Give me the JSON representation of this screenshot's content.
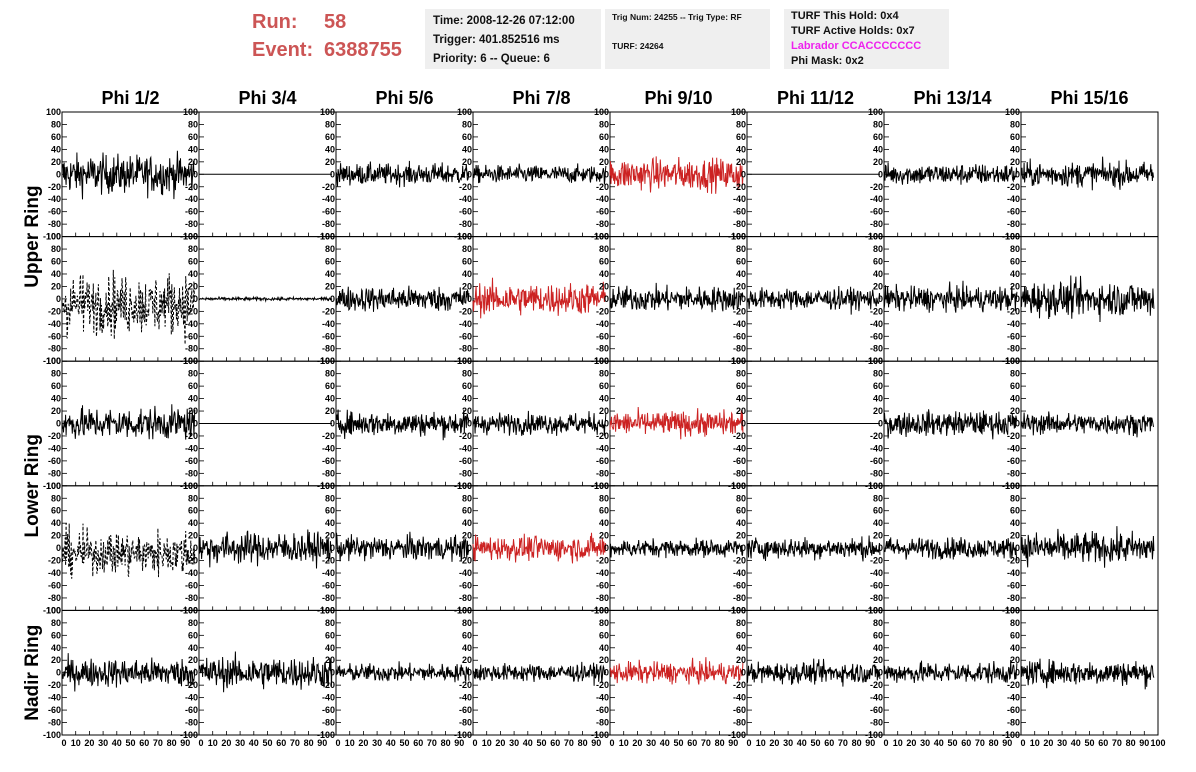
{
  "header": {
    "run_label": "Run:",
    "run_value": "58",
    "event_label": "Event:",
    "event_value": "6388755",
    "time": "Time: 2008-12-26 07:12:00",
    "trigger": "Trigger: 401.852516 ms",
    "priority": "Priority: 6 -- Queue: 6",
    "trig_num": "Trig Num: 24255 -- Trig Type: RF",
    "turf": "TURF: 24264",
    "turf_this_hold": "TURF This Hold: 0x4",
    "turf_active_holds": "TURF Active Holds: 0x7",
    "labrador": "Labrador CCACCCCCCC",
    "phi_mask": "Phi Mask: 0x2"
  },
  "colors": {
    "normal": "#000000",
    "triggered": "#cc2222",
    "labrador": "#ee22ee",
    "run_event": "#cc5555"
  },
  "chart_data": {
    "type": "line",
    "title": "",
    "columns": [
      "Phi 1/2",
      "Phi 3/4",
      "Phi 5/6",
      "Phi 7/8",
      "Phi 9/10",
      "Phi 11/12",
      "Phi 13/14",
      "Phi 15/16"
    ],
    "row_groups": [
      "Upper Ring",
      "Lower Ring",
      "Nadir Ring"
    ],
    "rows": 5,
    "ylim": [
      -100,
      100
    ],
    "xlim": [
      0,
      100
    ],
    "y_ticks": [
      -100,
      -80,
      -60,
      -40,
      -20,
      0,
      20,
      40,
      60,
      80,
      100
    ],
    "x_ticks": [
      0,
      10,
      20,
      30,
      40,
      50,
      60,
      70,
      80,
      90
    ],
    "x_tick_labels": [
      "0",
      "10",
      "20",
      "30",
      "40",
      "50",
      "60",
      "70",
      "80",
      "90"
    ],
    "last_x_tick_labels": [
      "0",
      "10",
      "20",
      "30",
      "40",
      "50",
      "60",
      "70",
      "80",
      "90",
      "100"
    ],
    "samples_per_trace": 260,
    "trace_x_range": [
      0,
      97
    ],
    "panels": [
      [
        {
          "style": "solid",
          "color": "black",
          "amp": 22
        },
        {
          "style": "flat",
          "color": "black",
          "amp": 0
        },
        {
          "style": "solid",
          "color": "black",
          "amp": 12
        },
        {
          "style": "solid",
          "color": "black",
          "amp": 10
        },
        {
          "style": "solid",
          "color": "red",
          "amp": 18
        },
        {
          "style": "flat",
          "color": "black",
          "amp": 0
        },
        {
          "style": "solid",
          "color": "black",
          "amp": 12
        },
        {
          "style": "solid",
          "color": "black",
          "amp": 14
        }
      ],
      [
        {
          "style": "dashed",
          "color": "black",
          "amp": 38
        },
        {
          "style": "quiet",
          "color": "black",
          "amp": 3
        },
        {
          "style": "solid",
          "color": "black",
          "amp": 14
        },
        {
          "style": "solid",
          "color": "red",
          "amp": 18
        },
        {
          "style": "solid",
          "color": "black",
          "amp": 14
        },
        {
          "style": "solid",
          "color": "black",
          "amp": 12
        },
        {
          "style": "solid",
          "color": "black",
          "amp": 14
        },
        {
          "style": "solid",
          "color": "black",
          "amp": 20
        }
      ],
      [
        {
          "style": "solid",
          "color": "black",
          "amp": 18
        },
        {
          "style": "flat",
          "color": "black",
          "amp": 0
        },
        {
          "style": "solid",
          "color": "black",
          "amp": 14
        },
        {
          "style": "solid",
          "color": "black",
          "amp": 12
        },
        {
          "style": "solid",
          "color": "red",
          "amp": 14
        },
        {
          "style": "flat",
          "color": "black",
          "amp": 0
        },
        {
          "style": "solid",
          "color": "black",
          "amp": 14
        },
        {
          "style": "solid",
          "color": "black",
          "amp": 12
        }
      ],
      [
        {
          "style": "dashed",
          "color": "black",
          "amp": 28
        },
        {
          "style": "solid",
          "color": "black",
          "amp": 18
        },
        {
          "style": "solid",
          "color": "black",
          "amp": 14
        },
        {
          "style": "solid",
          "color": "red",
          "amp": 14
        },
        {
          "style": "solid",
          "color": "black",
          "amp": 10
        },
        {
          "style": "solid",
          "color": "black",
          "amp": 12
        },
        {
          "style": "solid",
          "color": "black",
          "amp": 12
        },
        {
          "style": "solid",
          "color": "black",
          "amp": 18
        }
      ],
      [
        {
          "style": "solid",
          "color": "black",
          "amp": 16
        },
        {
          "style": "solid",
          "color": "black",
          "amp": 18
        },
        {
          "style": "solid",
          "color": "black",
          "amp": 10
        },
        {
          "style": "solid",
          "color": "black",
          "amp": 10
        },
        {
          "style": "solid",
          "color": "red",
          "amp": 12
        },
        {
          "style": "solid",
          "color": "black",
          "amp": 12
        },
        {
          "style": "solid",
          "color": "black",
          "amp": 12
        },
        {
          "style": "solid",
          "color": "black",
          "amp": 14
        }
      ]
    ]
  }
}
